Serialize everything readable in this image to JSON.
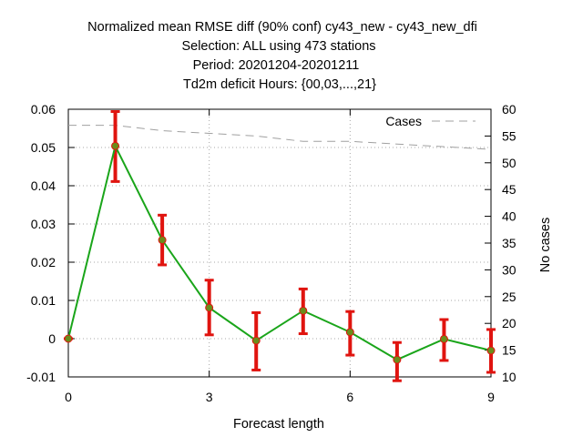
{
  "chart_data": {
    "type": "line",
    "title_lines": [
      "Normalized mean RMSE diff (90% conf) cy43_new - cy43_new_dfi",
      "Selection: ALL using   473 stations",
      "Period: 20201204-20201211",
      "Td2m deficit   Hours: {00,03,...,21}"
    ],
    "xlabel": "Forecast length",
    "ylabel_right": "No cases",
    "xlim": [
      0,
      9
    ],
    "ylim": [
      -0.01,
      0.06
    ],
    "y2lim": [
      10,
      60
    ],
    "x_ticks": [
      0,
      3,
      6,
      9
    ],
    "y_ticks": [
      -0.01,
      0,
      0.01,
      0.02,
      0.03,
      0.04,
      0.05,
      0.06
    ],
    "y_tick_labels": [
      "-0.01",
      "0",
      "0.01",
      "0.02",
      "0.03",
      "0.04",
      "0.05",
      "0.06"
    ],
    "y2_ticks": [
      10,
      15,
      20,
      25,
      30,
      35,
      40,
      45,
      50,
      55,
      60
    ],
    "grid": true,
    "legend": {
      "position": "top-right",
      "entries": [
        "Cases"
      ]
    },
    "series": [
      {
        "name": "",
        "color": "#1aa51a",
        "error_color": "#e0140f",
        "x": [
          0,
          1,
          2,
          3,
          4,
          5,
          6,
          7,
          8,
          9
        ],
        "y": [
          0.0,
          0.0504,
          0.0258,
          0.0081,
          -0.0005,
          0.0073,
          0.0017,
          -0.0055,
          -0.0001,
          -0.0031
        ],
        "err_low": [
          0.0,
          0.0411,
          0.0193,
          0.001,
          -0.0082,
          0.0013,
          -0.0043,
          -0.011,
          -0.0057,
          -0.0088
        ],
        "err_high": [
          0.0,
          0.0594,
          0.0323,
          0.0153,
          0.0068,
          0.013,
          0.0071,
          -0.001,
          0.005,
          0.0024
        ]
      },
      {
        "name": "Cases",
        "axis": "right",
        "color": "#a0a0a0",
        "dash": true,
        "x": [
          0,
          1,
          2,
          3,
          4,
          5,
          6,
          7,
          8,
          9
        ],
        "y": [
          57,
          57,
          56,
          55.5,
          55,
          54,
          54,
          53.5,
          53,
          52.5
        ]
      }
    ]
  }
}
